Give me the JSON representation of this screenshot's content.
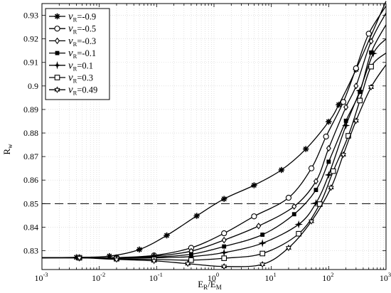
{
  "chart_data": {
    "type": "line",
    "title": "",
    "xlabel": {
      "base": "E",
      "sub1": "R",
      "mid": "/E",
      "sub2": "M"
    },
    "ylabel": {
      "base": "R",
      "sub": "w"
    },
    "xscale": "log",
    "xlim": [
      0.001,
      1000
    ],
    "ylim": [
      0.822,
      0.935
    ],
    "grid": true,
    "legend_position": "top-left",
    "x_tick_labels": [
      {
        "base": "10",
        "exp": "-3",
        "value": 0.001
      },
      {
        "base": "10",
        "exp": "-2",
        "value": 0.01
      },
      {
        "base": "10",
        "exp": "-1",
        "value": 0.1
      },
      {
        "base": "10",
        "exp": "0",
        "value": 1
      },
      {
        "base": "10",
        "exp": "1",
        "value": 10
      },
      {
        "base": "10",
        "exp": "2",
        "value": 100
      },
      {
        "base": "10",
        "exp": "3",
        "value": 1000
      }
    ],
    "y_ticks": [
      0.83,
      0.84,
      0.85,
      0.86,
      0.87,
      0.88,
      0.89,
      0.9,
      0.91,
      0.92,
      0.93
    ],
    "y_tick_labels": [
      "0.83",
      "0.84",
      "0.85",
      "0.86",
      "0.87",
      "0.88",
      "0.89",
      "0.9",
      "0.91",
      "0.92",
      "0.93"
    ],
    "reference_line": {
      "y": 0.85,
      "style": "dashed"
    },
    "common_start": {
      "x": 0.001,
      "y": 0.827
    },
    "series": [
      {
        "symbol": "ν",
        "sub": "R",
        "value_text": "=-0.9",
        "marker": "star",
        "x": [
          0.004,
          0.015,
          0.05,
          0.15,
          0.5,
          1.5,
          5,
          15,
          40,
          100,
          150,
          300
        ],
        "y": [
          0.8272,
          0.8277,
          0.8305,
          0.8365,
          0.8448,
          0.852,
          0.8578,
          0.8643,
          0.8732,
          0.8848,
          0.892,
          0.907
        ],
        "curve_x": [
          0.001,
          0.004,
          0.015,
          0.05,
          0.15,
          0.5,
          1.5,
          5,
          15,
          40,
          100,
          150,
          300,
          1000
        ],
        "curve_y": [
          0.827,
          0.8272,
          0.8277,
          0.8305,
          0.8365,
          0.8448,
          0.852,
          0.8578,
          0.8643,
          0.8732,
          0.8848,
          0.892,
          0.907,
          0.936
        ]
      },
      {
        "symbol": "ν",
        "sub": "R",
        "value_text": "=-0.5",
        "marker": "circle",
        "x": [
          0.0045,
          0.02,
          0.09,
          0.4,
          1.5,
          5,
          20,
          50,
          90,
          180,
          300,
          500
        ],
        "y": [
          0.827,
          0.8271,
          0.828,
          0.8312,
          0.8374,
          0.8446,
          0.8525,
          0.865,
          0.8785,
          0.8932,
          0.9075,
          0.9222
        ],
        "curve_x": [
          0.001,
          0.0045,
          0.02,
          0.09,
          0.4,
          1.5,
          5,
          20,
          50,
          90,
          180,
          300,
          500,
          1000
        ],
        "curve_y": [
          0.827,
          0.827,
          0.8271,
          0.828,
          0.8312,
          0.8374,
          0.8446,
          0.8525,
          0.865,
          0.8785,
          0.8932,
          0.9075,
          0.9222,
          0.934
        ]
      },
      {
        "symbol": "ν",
        "sub": "R",
        "value_text": "=-0.3",
        "marker": "diamond",
        "x": [
          0.0045,
          0.02,
          0.09,
          0.4,
          1.5,
          6,
          25,
          60,
          100,
          200,
          300,
          550
        ],
        "y": [
          0.827,
          0.827,
          0.8277,
          0.8298,
          0.8345,
          0.8405,
          0.8488,
          0.8595,
          0.8735,
          0.891,
          0.9,
          0.919
        ],
        "curve_x": [
          0.001,
          0.0045,
          0.02,
          0.09,
          0.4,
          1.5,
          6,
          25,
          60,
          100,
          200,
          300,
          550,
          1000
        ],
        "curve_y": [
          0.827,
          0.827,
          0.827,
          0.8277,
          0.8298,
          0.8345,
          0.8405,
          0.8488,
          0.8595,
          0.8735,
          0.891,
          0.9,
          0.919,
          0.931
        ]
      },
      {
        "symbol": "ν",
        "sub": "R",
        "value_text": "=-0.1",
        "marker": "square-filled",
        "x": [
          0.0045,
          0.02,
          0.09,
          0.4,
          1.5,
          7,
          25,
          60,
          100,
          200,
          350,
          550
        ],
        "y": [
          0.827,
          0.827,
          0.8273,
          0.8285,
          0.8318,
          0.8368,
          0.8455,
          0.8558,
          0.8678,
          0.8852,
          0.8975,
          0.9142
        ],
        "curve_x": [
          0.001,
          0.0045,
          0.02,
          0.09,
          0.4,
          1.5,
          7,
          25,
          60,
          100,
          200,
          350,
          550,
          1000
        ],
        "curve_y": [
          0.827,
          0.827,
          0.827,
          0.8273,
          0.8285,
          0.8318,
          0.8368,
          0.8455,
          0.8558,
          0.8678,
          0.8852,
          0.8975,
          0.9142,
          0.926
        ]
      },
      {
        "symbol": "ν",
        "sub": "R",
        "value_text": "=0.1",
        "marker": "plus-star",
        "x": [
          0.0045,
          0.02,
          0.09,
          0.4,
          1.5,
          7,
          30,
          60,
          100,
          200,
          350,
          600
        ],
        "y": [
          0.827,
          0.8269,
          0.827,
          0.8275,
          0.8292,
          0.8332,
          0.8412,
          0.8502,
          0.8622,
          0.8832,
          0.898,
          0.9138
        ],
        "curve_x": [
          0.001,
          0.0045,
          0.02,
          0.09,
          0.4,
          1.5,
          7,
          30,
          60,
          100,
          200,
          350,
          600,
          1000
        ],
        "curve_y": [
          0.827,
          0.827,
          0.8269,
          0.827,
          0.8275,
          0.8292,
          0.8332,
          0.8412,
          0.8502,
          0.8622,
          0.8832,
          0.898,
          0.9138,
          0.92
        ]
      },
      {
        "symbol": "ν",
        "sub": "R",
        "value_text": "=0.3",
        "marker": "square",
        "x": [
          0.0045,
          0.02,
          0.09,
          0.4,
          1.5,
          7,
          30,
          70,
          120,
          220,
          350,
          550
        ],
        "y": [
          0.827,
          0.8266,
          0.8263,
          0.826,
          0.8268,
          0.8288,
          0.8372,
          0.8498,
          0.8638,
          0.8788,
          0.8938,
          0.9082
        ],
        "curve_x": [
          0.001,
          0.0045,
          0.02,
          0.09,
          0.4,
          1.5,
          7,
          30,
          70,
          120,
          220,
          350,
          550,
          1000
        ],
        "curve_y": [
          0.827,
          0.827,
          0.8266,
          0.8263,
          0.826,
          0.8268,
          0.8288,
          0.8372,
          0.8498,
          0.8638,
          0.8788,
          0.8938,
          0.9082,
          0.914
        ]
      },
      {
        "symbol": "ν",
        "sub": "R",
        "value_text": "=0.49",
        "marker": "hexagram",
        "x": [
          0.0045,
          0.02,
          0.09,
          0.35,
          1.5,
          7,
          20,
          50,
          110,
          180,
          300,
          550
        ],
        "y": [
          0.827,
          0.8263,
          0.8257,
          0.8245,
          0.8233,
          0.8242,
          0.8312,
          0.8425,
          0.8568,
          0.8708,
          0.8852,
          0.8995
        ],
        "curve_x": [
          0.001,
          0.0045,
          0.02,
          0.09,
          0.35,
          1.5,
          7,
          20,
          50,
          110,
          180,
          300,
          550,
          1000
        ],
        "curve_y": [
          0.827,
          0.827,
          0.8263,
          0.8257,
          0.8245,
          0.8233,
          0.8242,
          0.8312,
          0.8425,
          0.8568,
          0.8708,
          0.8852,
          0.8995,
          0.909
        ]
      }
    ]
  }
}
